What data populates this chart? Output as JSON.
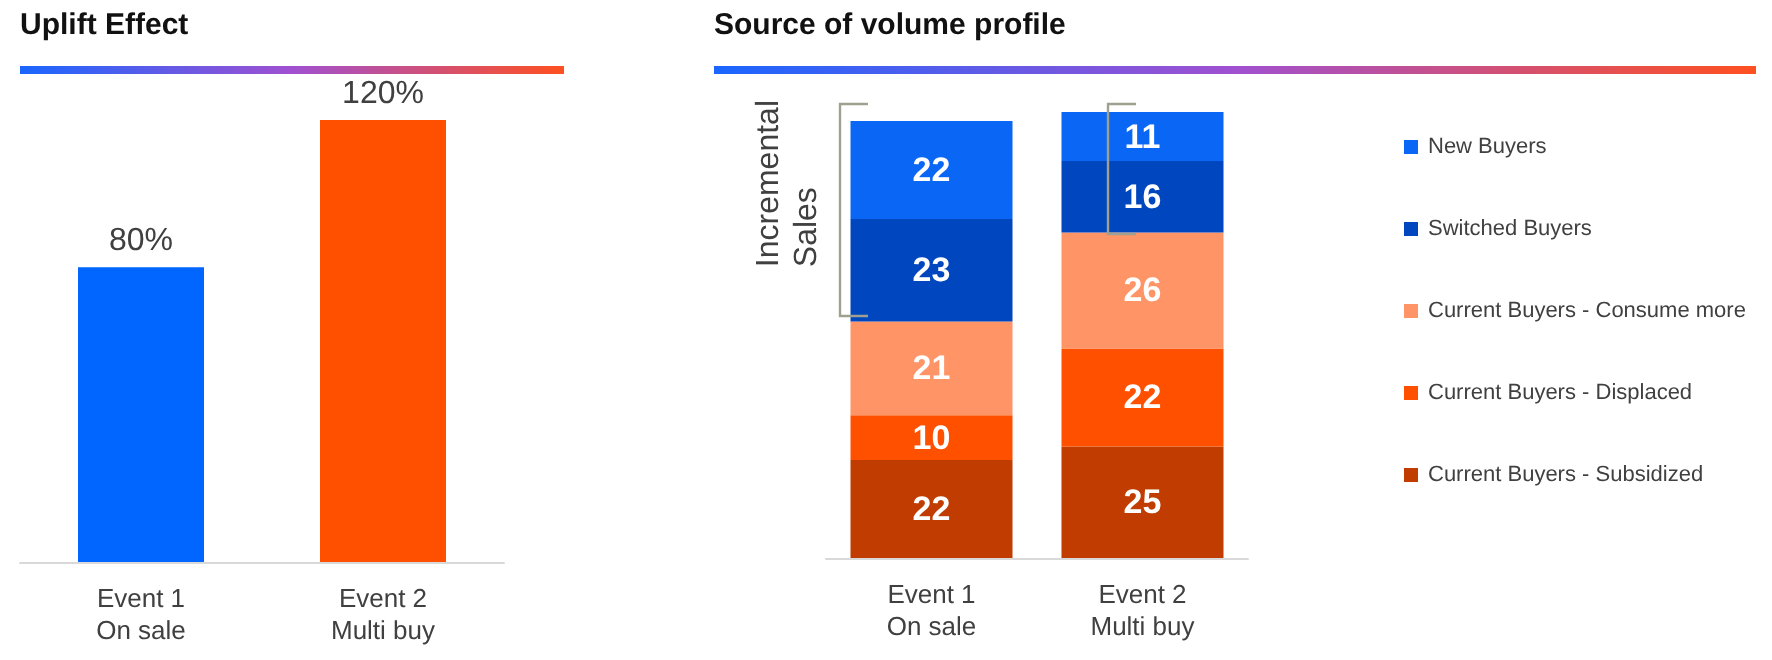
{
  "chart_data": [
    {
      "type": "bar",
      "title": "Uplift Effect",
      "categories": [
        "Event 1\nOn sale",
        "Event 2\nMulti buy"
      ],
      "values": [
        80,
        120
      ],
      "value_labels": [
        "80%",
        "120%"
      ],
      "colors": [
        "#0066ff",
        "#ff5000"
      ],
      "tick_labels": "x",
      "legend": false,
      "grid": false
    },
    {
      "type": "bar",
      "title": "Source of volume profile",
      "categories": [
        "Event 1\nOn sale",
        "Event 2\nMulti buy"
      ],
      "stacked": true,
      "data_labels": true,
      "tick_labels": "x",
      "legend": "right",
      "grid": false,
      "annotations": [
        "Incremental\nSales"
      ],
      "series": [
        {
          "name": "Current Buyers - Subsidized",
          "color": "#c03c00",
          "values": [
            22,
            25
          ]
        },
        {
          "name": "Current Buyers - Displaced",
          "color": "#ff5000",
          "values": [
            10,
            22
          ]
        },
        {
          "name": "Current Buyers - Consume more",
          "color": "#ff9466",
          "values": [
            21,
            26
          ]
        },
        {
          "name": "Switched Buyers",
          "color": "#0046be",
          "values": [
            23,
            16
          ]
        },
        {
          "name": "New Buyers",
          "color": "#0a66f5",
          "values": [
            22,
            11
          ]
        }
      ]
    }
  ]
}
